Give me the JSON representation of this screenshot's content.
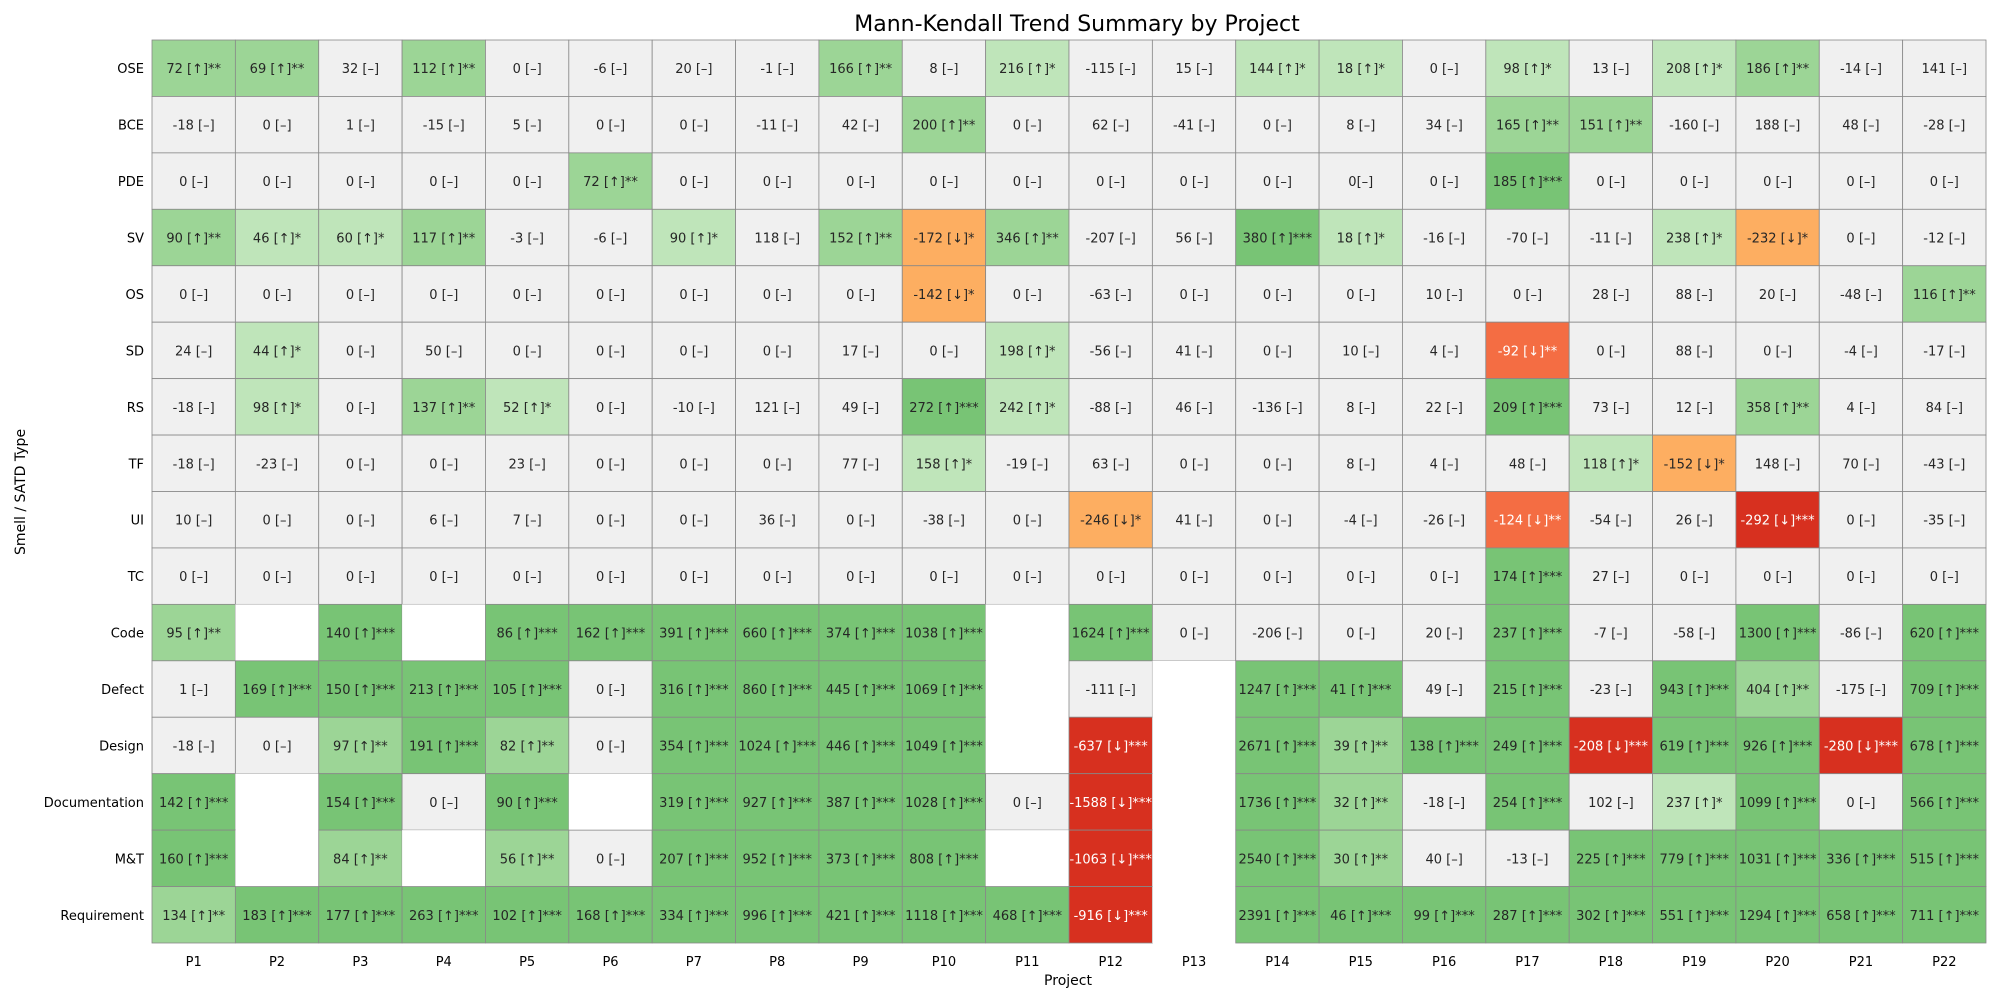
{
  "chart_data": {
    "type": "heatmap",
    "title": "Mann-Kendall Trend Summary by Project",
    "xlabel": "Project",
    "ylabel": "Smell / SATD Type",
    "columns": [
      "P1",
      "P2",
      "P3",
      "P4",
      "P5",
      "P6",
      "P7",
      "P8",
      "P9",
      "P10",
      "P11",
      "P12",
      "P13",
      "P14",
      "P15",
      "P16",
      "P17",
      "P18",
      "P19",
      "P20",
      "P21",
      "P22"
    ],
    "rows": [
      "OSE",
      "BCE",
      "PDE",
      "SV",
      "OS",
      "SD",
      "RS",
      "TF",
      "UI",
      "TC",
      "Code",
      "Defect",
      "Design",
      "Documentation",
      "M&T",
      "Requirement"
    ],
    "colors": {
      "none": "#f0f0f0",
      "up_1": "#bfe5ba",
      "up_2": "#9cd596",
      "up_3": "#78c475",
      "down_1": "#fdae61",
      "down_2": "#f46d43",
      "down_3": "#d7301f",
      "missing": "#ffffff",
      "gridline": "#888888"
    },
    "cells": [
      [
        "72 [↑]**",
        "69 [↑]**",
        "32 [–]",
        "112 [↑]**",
        "0 [–]",
        "-6 [–]",
        "20 [–]",
        "-1 [–]",
        "166 [↑]**",
        "8 [–]",
        "216 [↑]*",
        "-115 [–]",
        "15 [–]",
        "144 [↑]*",
        "18 [↑]*",
        "0 [–]",
        "98 [↑]*",
        "13 [–]",
        "208 [↑]*",
        "186 [↑]**",
        "-14 [–]",
        "141 [–]"
      ],
      [
        "-18 [–]",
        "0 [–]",
        "1 [–]",
        "-15 [–]",
        "5 [–]",
        "0 [–]",
        "0 [–]",
        "-11 [–]",
        "42 [–]",
        "200 [↑]**",
        "0 [–]",
        "62 [–]",
        "-41 [–]",
        "0 [–]",
        "8 [–]",
        "34 [–]",
        "165 [↑]**",
        "151 [↑]**",
        "-160 [–]",
        "188 [–]",
        "48 [–]",
        "-28 [–]"
      ],
      [
        "0 [–]",
        "0 [–]",
        "0 [–]",
        "0 [–]",
        "0 [–]",
        "72 [↑]**",
        "0 [–]",
        "0 [–]",
        "0 [–]",
        "0 [–]",
        "0 [–]",
        "0 [–]",
        "0 [–]",
        "0 [–]",
        "0[–]",
        "0 [–]",
        "185 [↑]***",
        "0 [–]",
        "0 [–]",
        "0 [–]",
        "0 [–]",
        "0 [–]"
      ],
      [
        "90 [↑]**",
        "46 [↑]*",
        "60 [↑]*",
        "117 [↑]**",
        "-3 [–]",
        "-6 [–]",
        "90 [↑]*",
        "118 [–]",
        "152 [↑]**",
        "-172 [↓]*",
        "346 [↑]**",
        "-207 [–]",
        "56 [–]",
        "380 [↑]***",
        "18 [↑]*",
        "-16 [–]",
        "-70 [–]",
        "-11 [–]",
        "238 [↑]*",
        "-232 [↓]*",
        "0 [–]",
        "-12 [–]"
      ],
      [
        "0 [–]",
        "0 [–]",
        "0 [–]",
        "0 [–]",
        "0 [–]",
        "0 [–]",
        "0 [–]",
        "0 [–]",
        "0 [–]",
        "-142 [↓]*",
        "0 [–]",
        "-63 [–]",
        "0 [–]",
        "0 [–]",
        "0 [–]",
        "10 [–]",
        "0 [–]",
        "28 [–]",
        "88 [–]",
        "20 [–]",
        "-48 [–]",
        "116 [↑]**"
      ],
      [
        "24 [–]",
        "44 [↑]*",
        "0 [–]",
        "50 [–]",
        "0 [–]",
        "0 [–]",
        "0 [–]",
        "0 [–]",
        "17 [–]",
        "0 [–]",
        "198 [↑]*",
        "-56 [–]",
        "41 [–]",
        "0 [–]",
        "10 [–]",
        "4 [–]",
        "-92 [↓]**",
        "0 [–]",
        "88 [–]",
        "0 [–]",
        "-4 [–]",
        "-17 [–]"
      ],
      [
        "-18 [–]",
        "98 [↑]*",
        "0 [–]",
        "137 [↑]**",
        "52 [↑]*",
        "0 [–]",
        "-10 [–]",
        "121 [–]",
        "49 [–]",
        "272 [↑]***",
        "242 [↑]*",
        "-88 [–]",
        "46 [–]",
        "-136 [–]",
        "8 [–]",
        "22 [–]",
        "209 [↑]***",
        "73 [–]",
        "12 [–]",
        "358 [↑]**",
        "4 [–]",
        "84 [–]"
      ],
      [
        "-18 [–]",
        "-23 [–]",
        "0 [–]",
        "0 [–]",
        "23 [–]",
        "0 [–]",
        "0 [–]",
        "0 [–]",
        "77 [–]",
        "158 [↑]*",
        "-19 [–]",
        "63 [–]",
        "0 [–]",
        "0 [–]",
        "8 [–]",
        "4 [–]",
        "48 [–]",
        "118 [↑]*",
        "-152 [↓]*",
        "148 [–]",
        "70 [–]",
        "-43 [–]"
      ],
      [
        "10 [–]",
        "0 [–]",
        "0 [–]",
        "6 [–]",
        "7 [–]",
        "0 [–]",
        "0 [–]",
        "36 [–]",
        "0 [–]",
        "-38 [–]",
        "0 [–]",
        "-246 [↓]*",
        "41 [–]",
        "0 [–]",
        "-4 [–]",
        "-26 [–]",
        "-124 [↓]**",
        "-54 [–]",
        "26 [–]",
        "-292 [↓]***",
        "0 [–]",
        "-35 [–]"
      ],
      [
        "0 [–]",
        "0 [–]",
        "0 [–]",
        "0 [–]",
        "0 [–]",
        "0 [–]",
        "0 [–]",
        "0 [–]",
        "0 [–]",
        "0 [–]",
        "0 [–]",
        "0 [–]",
        "0 [–]",
        "0 [–]",
        "0 [–]",
        "0 [–]",
        "174 [↑]***",
        "27 [–]",
        "0 [–]",
        "0 [–]",
        "0 [–]",
        "0 [–]"
      ],
      [
        "95 [↑]**",
        "",
        "140 [↑]***",
        "",
        "86 [↑]***",
        "162 [↑]***",
        "391 [↑]***",
        "660 [↑]***",
        "374 [↑]***",
        "1038 [↑]***",
        "",
        "1624 [↑]***",
        "0 [–]",
        "-206 [–]",
        "0 [–]",
        "20 [–]",
        "237 [↑]***",
        "-7 [–]",
        "-58 [–]",
        "1300 [↑]***",
        "-86 [–]",
        "620 [↑]***"
      ],
      [
        "1 [–]",
        "169 [↑]***",
        "150 [↑]***",
        "213 [↑]***",
        "105 [↑]***",
        "0 [–]",
        "316 [↑]***",
        "860 [↑]***",
        "445 [↑]***",
        "1069 [↑]***",
        "",
        "-111 [–]",
        "",
        "1247 [↑]***",
        "41 [↑]***",
        "49 [–]",
        "215 [↑]***",
        "-23 [–]",
        "943 [↑]***",
        "404 [↑]**",
        "-175 [–]",
        "709 [↑]***"
      ],
      [
        "-18 [–]",
        "0 [–]",
        "97 [↑]**",
        "191 [↑]***",
        "82 [↑]**",
        "0 [–]",
        "354 [↑]***",
        "1024 [↑]***",
        "446 [↑]***",
        "1049 [↑]***",
        "",
        "-637 [↓]***",
        "",
        "2671 [↑]***",
        "39 [↑]**",
        "138 [↑]***",
        "249 [↑]***",
        "-208 [↓]***",
        "619 [↑]***",
        "926 [↑]***",
        "-280 [↓]***",
        "678 [↑]***"
      ],
      [
        "142 [↑]***",
        "",
        "154 [↑]***",
        "0 [–]",
        "90 [↑]***",
        "",
        "319 [↑]***",
        "927 [↑]***",
        "387 [↑]***",
        "1028 [↑]***",
        "0 [–]",
        "-1588 [↓]***",
        "",
        "1736 [↑]***",
        "32 [↑]**",
        "-18 [–]",
        "254 [↑]***",
        "102 [–]",
        "237 [↑]*",
        "1099 [↑]***",
        "0 [–]",
        "566 [↑]***"
      ],
      [
        "160 [↑]***",
        "",
        "84 [↑]**",
        "",
        "56 [↑]**",
        "0 [–]",
        "207 [↑]***",
        "952 [↑]***",
        "373 [↑]***",
        "808 [↑]***",
        "",
        "-1063 [↓]***",
        "",
        "2540 [↑]***",
        "30 [↑]**",
        "40 [–]",
        "-13 [–]",
        "225 [↑]***",
        "779 [↑]***",
        "1031 [↑]***",
        "336 [↑]***",
        "515 [↑]***"
      ],
      [
        "134 [↑]**",
        "183 [↑]***",
        "177 [↑]***",
        "263 [↑]***",
        "102 [↑]***",
        "168 [↑]***",
        "334 [↑]***",
        "996 [↑]***",
        "421 [↑]***",
        "1118 [↑]***",
        "468 [↑]***",
        "-916 [↓]***",
        "",
        "2391 [↑]***",
        "46 [↑]***",
        "99 [↑]***",
        "287 [↑]***",
        "302 [↑]***",
        "551 [↑]***",
        "1294 [↑]***",
        "658 [↑]***",
        "711 [↑]***"
      ]
    ]
  }
}
